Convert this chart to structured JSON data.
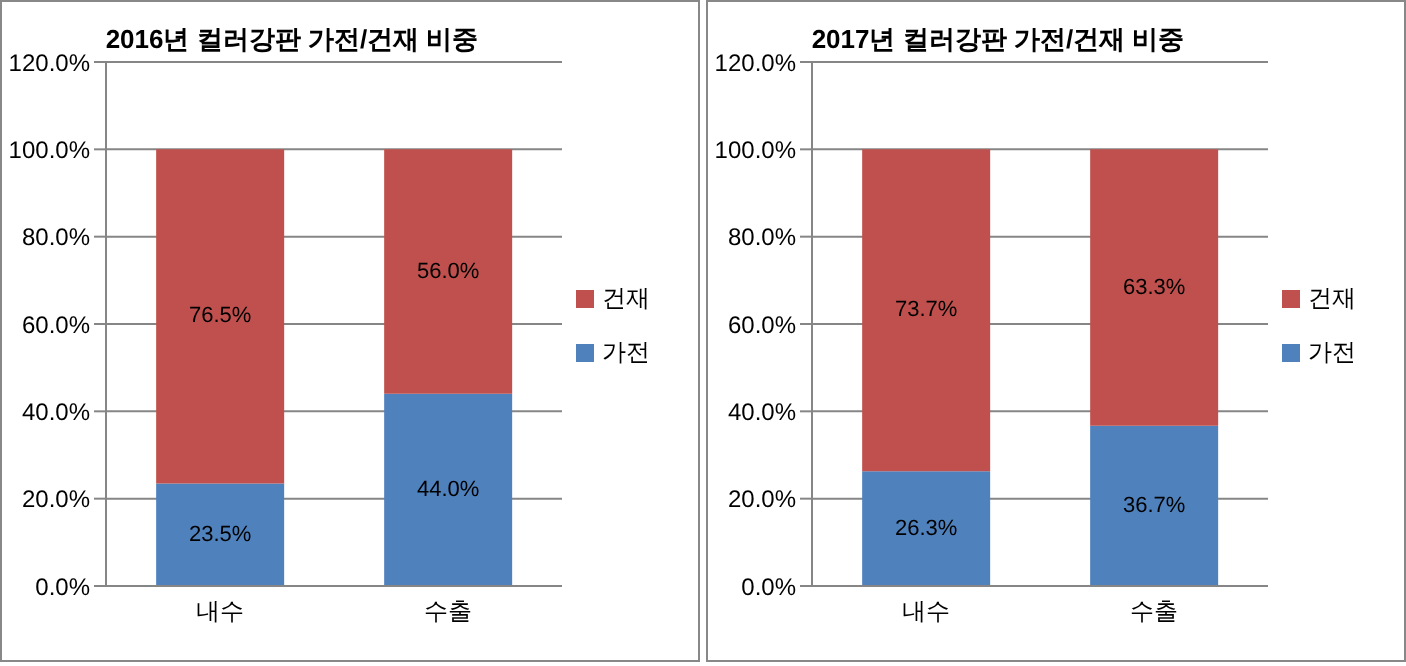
{
  "chart_data": [
    {
      "type": "bar",
      "title": "2016년 컬러강판 가전/건재 비중",
      "categories": [
        "내수",
        "수출"
      ],
      "stacked": true,
      "grid": "y",
      "legend": "right",
      "ylim": [
        0,
        120
      ],
      "yticks": [
        {
          "value": 0,
          "label": "0.0%"
        },
        {
          "value": 20,
          "label": "20.0%"
        },
        {
          "value": 40,
          "label": "40.0%"
        },
        {
          "value": 60,
          "label": "60.0%"
        },
        {
          "value": 80,
          "label": "80.0%"
        },
        {
          "value": 100,
          "label": "100.0%"
        },
        {
          "value": 120,
          "label": "120.0%"
        }
      ],
      "series": [
        {
          "name": "가전",
          "color": "#4f81bd",
          "values": [
            23.5,
            44.0
          ],
          "value_labels": [
            "23.5%",
            "44.0%"
          ]
        },
        {
          "name": "건재",
          "color": "#c0504d",
          "values": [
            76.5,
            56.0
          ],
          "value_labels": [
            "76.5%",
            "56.0%"
          ]
        }
      ]
    },
    {
      "type": "bar",
      "title": "2017년 컬러강판 가전/건재 비중",
      "categories": [
        "내수",
        "수출"
      ],
      "stacked": true,
      "grid": "y",
      "legend": "right",
      "ylim": [
        0,
        120
      ],
      "yticks": [
        {
          "value": 0,
          "label": "0.0%"
        },
        {
          "value": 20,
          "label": "20.0%"
        },
        {
          "value": 40,
          "label": "40.0%"
        },
        {
          "value": 60,
          "label": "60.0%"
        },
        {
          "value": 80,
          "label": "80.0%"
        },
        {
          "value": 100,
          "label": "100.0%"
        },
        {
          "value": 120,
          "label": "120.0%"
        }
      ],
      "series": [
        {
          "name": "가전",
          "color": "#4f81bd",
          "values": [
            26.3,
            36.7
          ],
          "value_labels": [
            "26.3%",
            "36.7%"
          ]
        },
        {
          "name": "건재",
          "color": "#c0504d",
          "values": [
            73.7,
            63.3
          ],
          "value_labels": [
            "73.7%",
            "63.3%"
          ]
        }
      ]
    }
  ]
}
